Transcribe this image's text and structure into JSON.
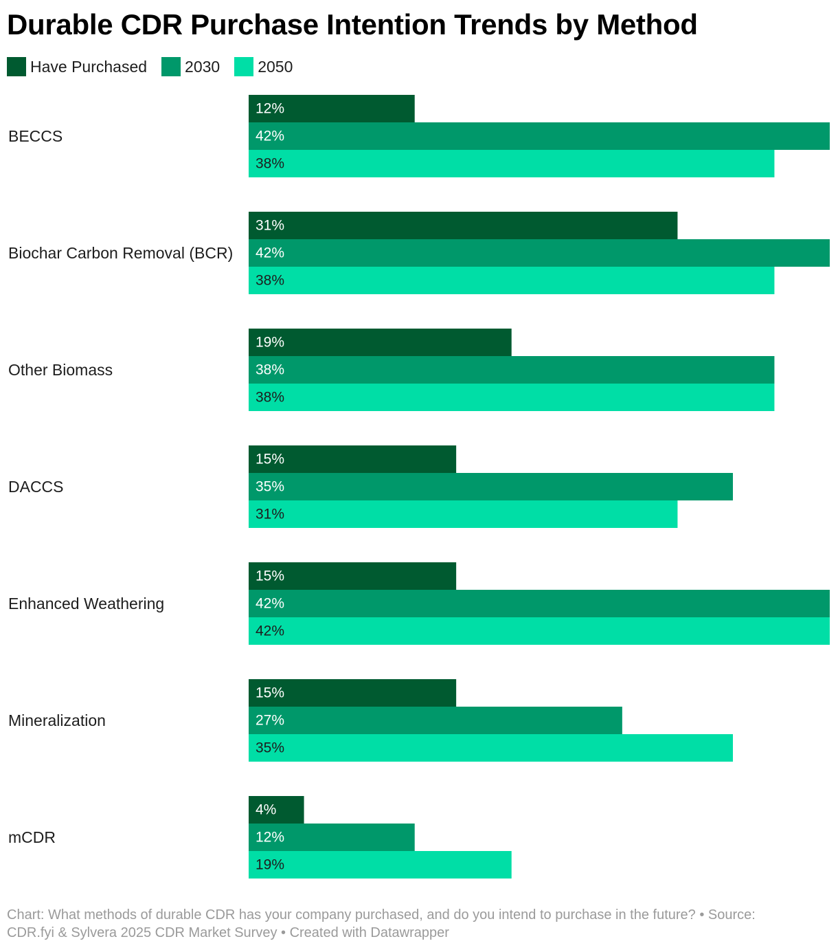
{
  "chart_data": {
    "type": "bar",
    "orientation": "horizontal",
    "title": "Durable CDR Purchase Intention Trends by Method",
    "categories": [
      "BECCS",
      "Biochar Carbon Removal (BCR)",
      "Other Biomass",
      "DACCS",
      "Enhanced Weathering",
      "Mineralization",
      "mCDR"
    ],
    "series": [
      {
        "name": "Have Purchased",
        "color": "#005a30",
        "label_color": "#ffffff",
        "values": [
          12,
          31,
          19,
          15,
          15,
          15,
          4
        ]
      },
      {
        "name": "2030",
        "color": "#00986a",
        "label_color": "#ffffff",
        "values": [
          42,
          42,
          38,
          35,
          42,
          27,
          12
        ]
      },
      {
        "name": "2050",
        "color": "#00dea6",
        "label_color": "#1d1d1d",
        "values": [
          38,
          38,
          38,
          31,
          42,
          35,
          19
        ]
      }
    ],
    "value_suffix": "%",
    "xlim": [
      0,
      42
    ],
    "grid": false,
    "legend_position": "top-left"
  },
  "footer": {
    "line1": "Chart: What methods of durable CDR has your company purchased, and do you intend to purchase in the future? • Source:",
    "line2": "CDR.fyi & Sylvera 2025 CDR Market Survey • Created with Datawrapper"
  }
}
